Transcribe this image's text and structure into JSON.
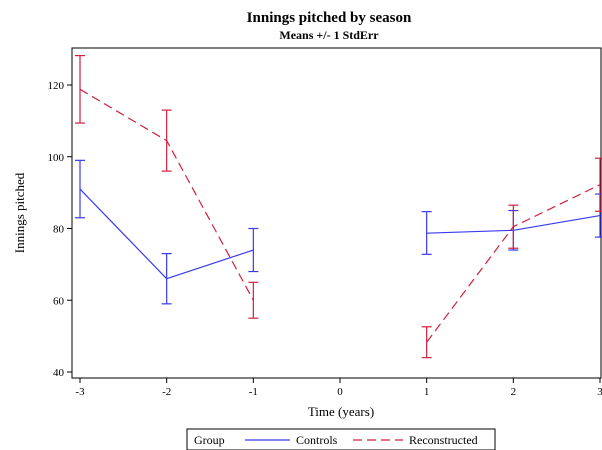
{
  "chart_data": {
    "type": "line",
    "title": "Innings pitched by season",
    "subtitle": "Means +/- 1 StdErr",
    "xlabel": "Time (years)",
    "ylabel": "Innings pitched",
    "xlim": [
      -3,
      3
    ],
    "ylim": [
      40,
      130
    ],
    "xticks": [
      -3,
      -2,
      -1,
      0,
      1,
      2,
      3
    ],
    "xtick_labels": [
      "-3",
      "-2",
      "-1",
      "0",
      "1",
      "2",
      "3"
    ],
    "yticks": [
      40,
      60,
      80,
      100,
      120
    ],
    "ytick_labels": [
      "40",
      "60",
      "80",
      "100",
      "120"
    ],
    "grid": false,
    "legend_position": "bottom",
    "legend_title": "Group",
    "series": [
      {
        "name": "Controls",
        "color": "#3a3af0",
        "line_style": "solid",
        "segments": [
          [
            {
              "x": -3,
              "y": 91,
              "lower": 83,
              "upper": 99
            },
            {
              "x": -2,
              "y": 66,
              "lower": 59,
              "upper": 73
            },
            {
              "x": -1,
              "y": 74,
              "lower": 68,
              "upper": 80
            }
          ],
          [
            {
              "x": 1,
              "y": 78.7,
              "lower": 72.8,
              "upper": 84.7
            },
            {
              "x": 2,
              "y": 79.5,
              "lower": 74,
              "upper": 85
            },
            {
              "x": 3,
              "y": 83.6,
              "lower": 77.6,
              "upper": 89.6
            }
          ]
        ]
      },
      {
        "name": "Reconstructed",
        "color": "#d02040",
        "line_style": "dashed",
        "segments": [
          [
            {
              "x": -3,
              "y": 118.8,
              "lower": 109.4,
              "upper": 128.2
            },
            {
              "x": -2,
              "y": 104.5,
              "lower": 96,
              "upper": 113
            },
            {
              "x": -1,
              "y": 60,
              "lower": 55,
              "upper": 65
            }
          ],
          [
            {
              "x": 1,
              "y": 48.3,
              "lower": 44,
              "upper": 52.6
            },
            {
              "x": 2,
              "y": 80.5,
              "lower": 74.5,
              "upper": 86.5
            },
            {
              "x": 3,
              "y": 92.2,
              "lower": 84.8,
              "upper": 99.6
            }
          ]
        ]
      }
    ]
  }
}
